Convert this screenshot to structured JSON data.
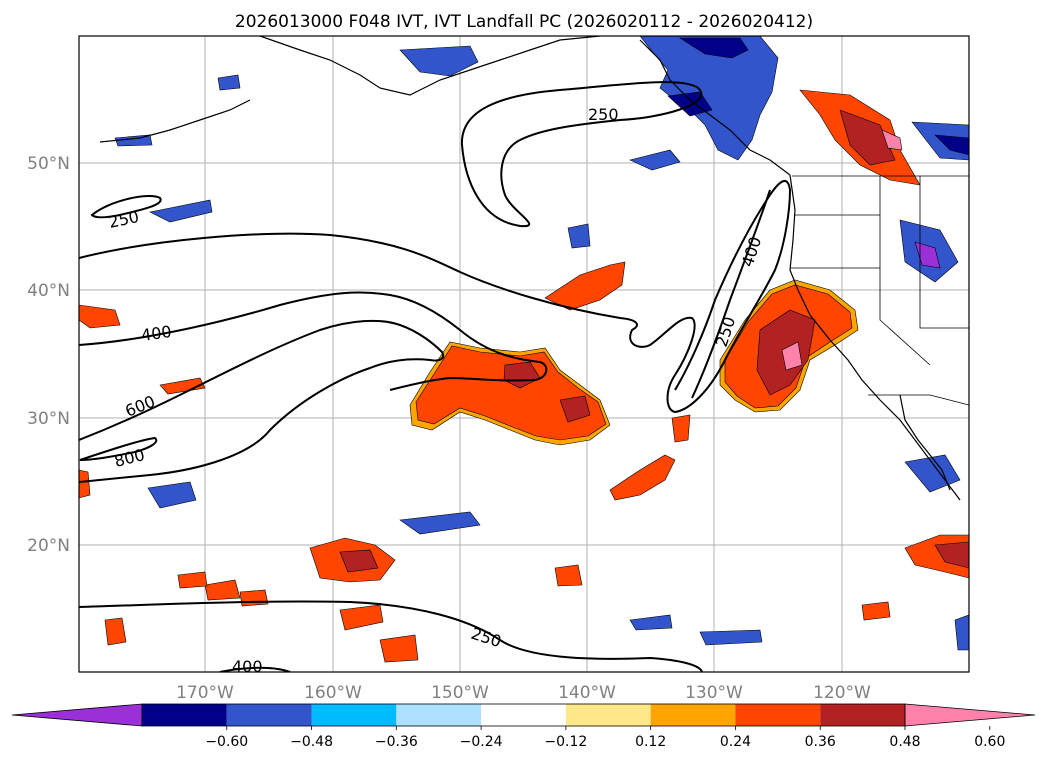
{
  "title": "2026013000 F048 IVT, IVT Landfall PC (2026020112 - 2026020412)",
  "lat_labels": [
    "50°N",
    "40°N",
    "30°N",
    "20°N"
  ],
  "lon_labels": [
    "170°W",
    "160°W",
    "150°W",
    "140°W",
    "130°W",
    "120°W"
  ],
  "contour_labels": [
    "250",
    "250",
    "400",
    "600",
    "800",
    "400",
    "250",
    "400",
    "250"
  ],
  "colorbar": {
    "colors": [
      "#9b30d9",
      "#000089",
      "#3355cc",
      "#00bbff",
      "#aee0ff",
      "#ffffff",
      "#ffe88a",
      "#ffa500",
      "#ff4500",
      "#b22222",
      "#ff82ab"
    ],
    "tick_labels": [
      "−0.60",
      "−0.48",
      "−0.36",
      "−0.24",
      "−0.12",
      "0.12",
      "0.24",
      "0.36",
      "0.48",
      "0.60"
    ]
  }
}
